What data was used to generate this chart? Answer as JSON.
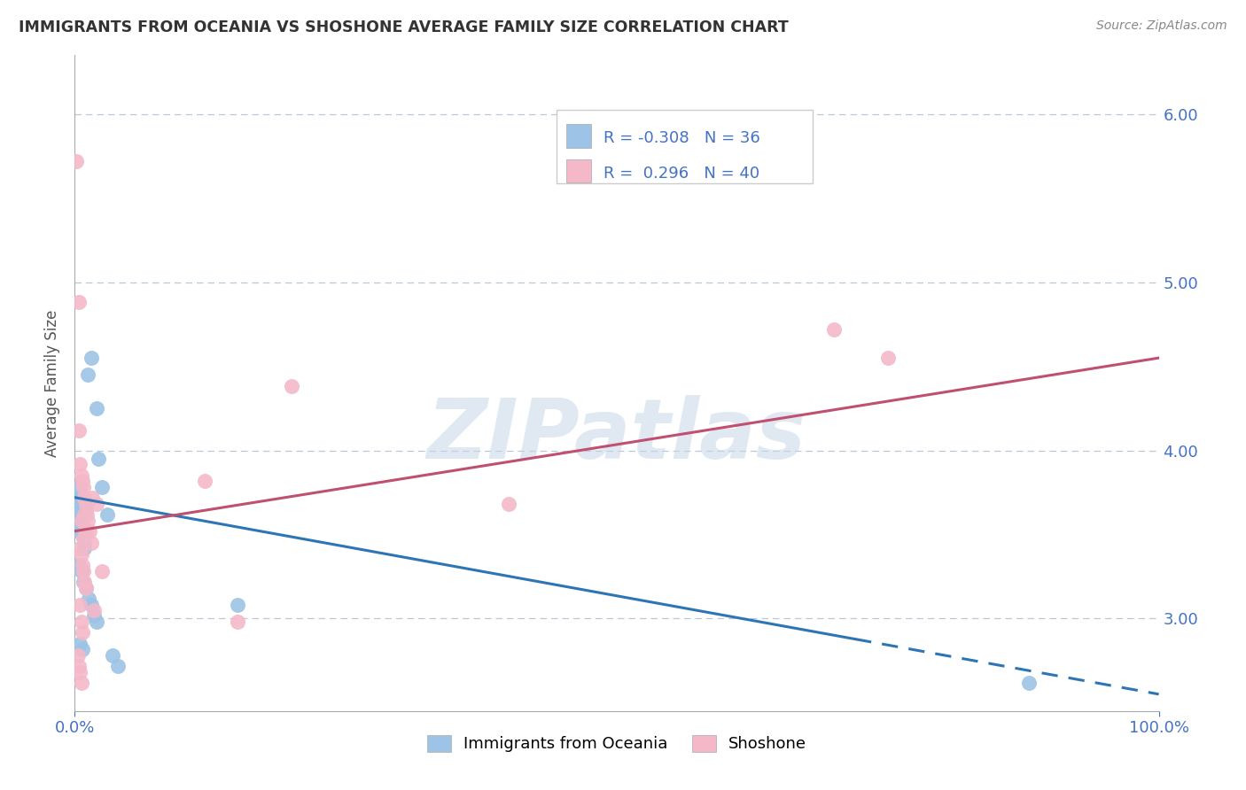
{
  "title": "IMMIGRANTS FROM OCEANIA VS SHOSHONE AVERAGE FAMILY SIZE CORRELATION CHART",
  "source": "Source: ZipAtlas.com",
  "ylabel": "Average Family Size",
  "xmin": 0.0,
  "xmax": 100.0,
  "ymin": 2.45,
  "ymax": 6.35,
  "yticks": [
    3.0,
    4.0,
    5.0,
    6.0
  ],
  "xtick_labels": [
    "0.0%",
    "100.0%"
  ],
  "right_axis_color": "#4472c4",
  "background_color": "#ffffff",
  "grid_color": "#b8c8d8",
  "watermark": "ZIPatlas",
  "legend": {
    "series1_label": "Immigrants from Oceania",
    "series1_color": "#9dc3e6",
    "series1_R": "-0.308",
    "series1_N": "36",
    "series2_label": "Shoshone",
    "series2_color": "#f4b8c8",
    "series2_R": "0.296",
    "series2_N": "40"
  },
  "blue_scatter": [
    [
      0.15,
      3.72
    ],
    [
      0.2,
      3.68
    ],
    [
      0.25,
      3.62
    ],
    [
      0.3,
      3.58
    ],
    [
      0.35,
      3.55
    ],
    [
      0.4,
      3.52
    ],
    [
      0.5,
      3.78
    ],
    [
      0.55,
      3.72
    ],
    [
      0.6,
      3.66
    ],
    [
      0.65,
      3.6
    ],
    [
      0.7,
      3.55
    ],
    [
      0.75,
      3.5
    ],
    [
      0.8,
      3.48
    ],
    [
      0.85,
      3.45
    ],
    [
      0.9,
      3.42
    ],
    [
      1.0,
      3.65
    ],
    [
      1.2,
      4.45
    ],
    [
      1.5,
      4.55
    ],
    [
      2.0,
      4.25
    ],
    [
      2.2,
      3.95
    ],
    [
      2.5,
      3.78
    ],
    [
      3.0,
      3.62
    ],
    [
      0.4,
      3.32
    ],
    [
      0.6,
      3.28
    ],
    [
      0.8,
      3.22
    ],
    [
      1.0,
      3.18
    ],
    [
      1.3,
      3.12
    ],
    [
      1.5,
      3.08
    ],
    [
      1.8,
      3.02
    ],
    [
      2.0,
      2.98
    ],
    [
      0.5,
      2.85
    ],
    [
      0.7,
      2.82
    ],
    [
      3.5,
      2.78
    ],
    [
      4.0,
      2.72
    ],
    [
      15.0,
      3.08
    ],
    [
      88.0,
      2.62
    ]
  ],
  "pink_scatter": [
    [
      0.15,
      5.72
    ],
    [
      0.35,
      4.88
    ],
    [
      0.4,
      4.12
    ],
    [
      0.5,
      3.92
    ],
    [
      0.6,
      3.85
    ],
    [
      0.7,
      3.82
    ],
    [
      0.8,
      3.78
    ],
    [
      0.9,
      3.72
    ],
    [
      1.0,
      3.68
    ],
    [
      1.1,
      3.62
    ],
    [
      1.2,
      3.58
    ],
    [
      1.4,
      3.52
    ],
    [
      1.6,
      3.72
    ],
    [
      2.0,
      3.68
    ],
    [
      0.5,
      3.42
    ],
    [
      0.6,
      3.38
    ],
    [
      0.7,
      3.32
    ],
    [
      0.8,
      3.28
    ],
    [
      0.9,
      3.22
    ],
    [
      1.0,
      3.18
    ],
    [
      1.5,
      3.45
    ],
    [
      2.5,
      3.28
    ],
    [
      0.5,
      3.08
    ],
    [
      0.6,
      2.98
    ],
    [
      0.7,
      2.92
    ],
    [
      1.8,
      3.05
    ],
    [
      12.0,
      3.82
    ],
    [
      20.0,
      4.38
    ],
    [
      40.0,
      3.68
    ],
    [
      70.0,
      4.72
    ],
    [
      75.0,
      4.55
    ],
    [
      0.3,
      2.78
    ],
    [
      15.0,
      2.98
    ],
    [
      0.4,
      2.72
    ],
    [
      0.5,
      2.68
    ],
    [
      0.6,
      2.62
    ],
    [
      0.8,
      3.48
    ],
    [
      1.0,
      3.52
    ],
    [
      0.6,
      3.58
    ],
    [
      0.9,
      3.62
    ]
  ],
  "blue_line": {
    "x0": 0.0,
    "y0": 3.72,
    "x1": 100.0,
    "y1": 2.55
  },
  "pink_line": {
    "x0": 0.0,
    "y0": 3.52,
    "x1": 100.0,
    "y1": 4.55
  },
  "blue_solid_end": 72.0,
  "blue_dashed_start": 72.0
}
